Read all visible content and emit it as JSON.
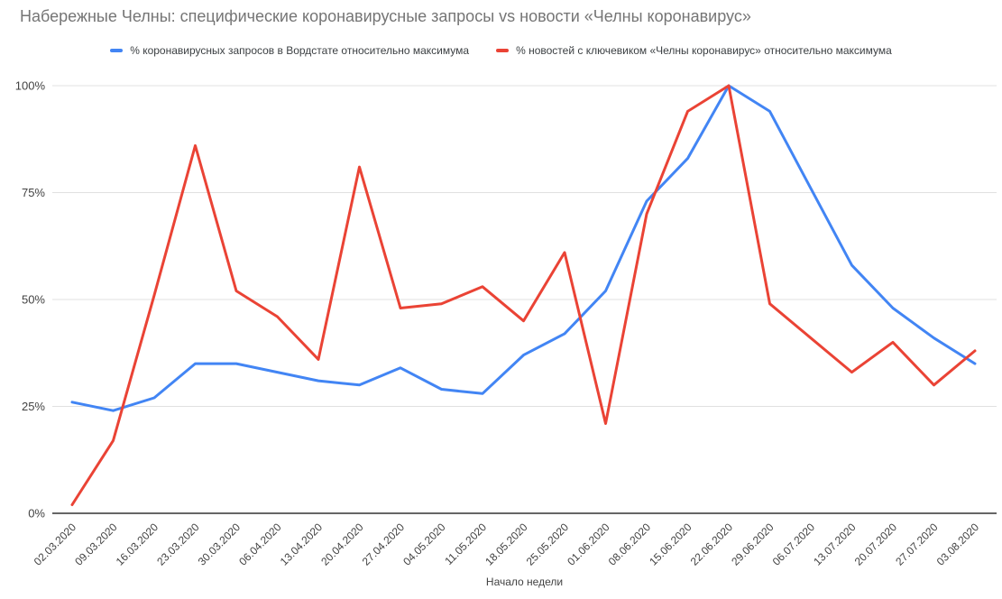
{
  "title": "Набережные Челны: специфические коронавирусные запросы vs новости «Челны коронавирус»",
  "chart_data": {
    "type": "line",
    "title": "Набережные Челны: специфические коронавирусные запросы vs новости «Челны коронавирус»",
    "xlabel": "Начало недели",
    "ylabel": "",
    "ylim": [
      0,
      100
    ],
    "grid": true,
    "legend_position": "top",
    "yticks": [
      {
        "label": "0%",
        "value": 0
      },
      {
        "label": "25%",
        "value": 25
      },
      {
        "label": "50%",
        "value": 50
      },
      {
        "label": "75%",
        "value": 75
      },
      {
        "label": "100%",
        "value": 100
      }
    ],
    "categories": [
      "02.03.2020",
      "09.03.2020",
      "16.03.2020",
      "23.03.2020",
      "30.03.2020",
      "06.04.2020",
      "13.04.2020",
      "20.04.2020",
      "27.04.2020",
      "04.05.2020",
      "11.05.2020",
      "18.05.2020",
      "25.05.2020",
      "01.06.2020",
      "08.06.2020",
      "15.06.2020",
      "22.06.2020",
      "29.06.2020",
      "06.07.2020",
      "13.07.2020",
      "20.07.2020",
      "27.07.2020",
      "03.08.2020"
    ],
    "series": [
      {
        "name": "% коронавирусных запросов в Вордстате относительно максимума",
        "color": "#4285F4",
        "values": [
          26,
          24,
          27,
          35,
          35,
          33,
          31,
          30,
          34,
          29,
          28,
          37,
          42,
          52,
          73,
          83,
          100,
          94,
          76,
          58,
          48,
          41,
          35
        ]
      },
      {
        "name": "% новостей с ключевиком «Челны коронавирус» относительно максимума",
        "color": "#EA4335",
        "values": [
          2,
          17,
          51,
          86,
          52,
          46,
          36,
          81,
          48,
          49,
          53,
          45,
          61,
          21,
          70,
          94,
          100,
          49,
          41,
          33,
          40,
          30,
          38
        ]
      }
    ]
  },
  "colors": {
    "grid_line": "#e0e0e0",
    "axis_line": "#333333",
    "tick_text": "#424242",
    "axis_label_text": "#424242",
    "title_text": "#757575"
  }
}
